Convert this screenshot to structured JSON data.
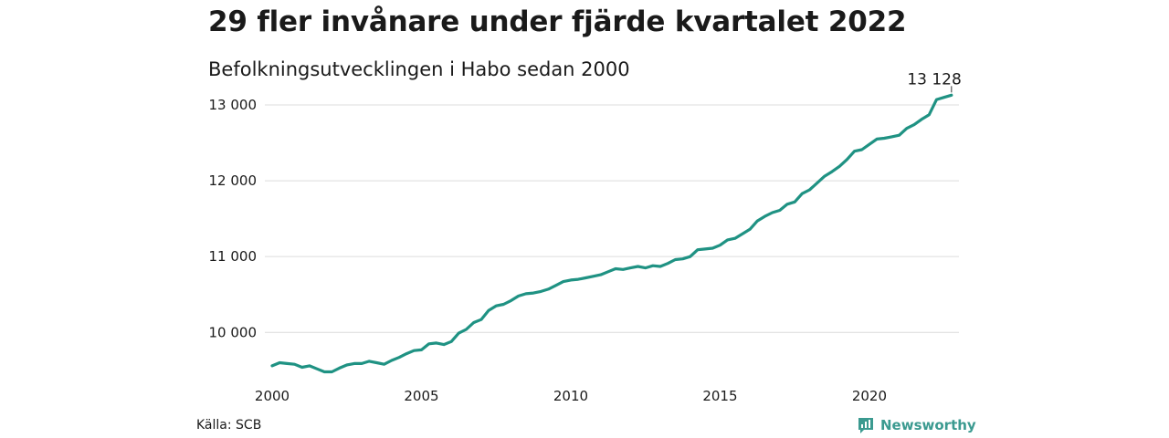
{
  "header": {
    "title": "29 fler invånare under fjärde kvartalet 2022",
    "subtitle": "Befolkningsutvecklingen i Habo sedan 2000"
  },
  "footer": {
    "source": "Källa: SCB",
    "brand": "Newsworthy",
    "brand_icon": "bar-chart-logo-icon"
  },
  "colors": {
    "line": "#1f9283",
    "grid": "#dcdcdc",
    "brand": "#3b9a90"
  },
  "chart_data": {
    "type": "line",
    "title": "29 fler invånare under fjärde kvartalet 2022",
    "subtitle": "Befolkningsutvecklingen i Habo sedan 2000",
    "xlabel": "",
    "ylabel": "",
    "xlim": [
      2000,
      2023
    ],
    "ylim": [
      9450,
      13180
    ],
    "grid": "horizontal",
    "legend": "none",
    "x_ticks": [
      2000,
      2005,
      2010,
      2015,
      2020
    ],
    "x_tick_labels": [
      "2000",
      "2005",
      "2010",
      "2015",
      "2020"
    ],
    "y_ticks": [
      10000,
      11000,
      12000,
      13000
    ],
    "y_tick_labels": [
      "10 000",
      "11 000",
      "12 000",
      "13 000"
    ],
    "end_label": "13 128",
    "series": [
      {
        "x": [
          2000.0,
          2000.25,
          2000.5,
          2000.75,
          2001.0,
          2001.25,
          2001.5,
          2001.75,
          2002.0,
          2002.25,
          2002.5,
          2002.75,
          2003.0,
          2003.25,
          2003.5,
          2003.75,
          2004.0,
          2004.25,
          2004.5,
          2004.75,
          2005.0,
          2005.25,
          2005.5,
          2005.75,
          2006.0,
          2006.25,
          2006.5,
          2006.75,
          2007.0,
          2007.25,
          2007.5,
          2007.75,
          2008.0,
          2008.25,
          2008.5,
          2008.75,
          2009.0,
          2009.25,
          2009.5,
          2009.75,
          2010.0,
          2010.25,
          2010.5,
          2010.75,
          2011.0,
          2011.25,
          2011.5,
          2011.75,
          2012.0,
          2012.25,
          2012.5,
          2012.75,
          2013.0,
          2013.25,
          2013.5,
          2013.75,
          2014.0,
          2014.25,
          2014.5,
          2014.75,
          2015.0,
          2015.25,
          2015.5,
          2015.75,
          2016.0,
          2016.25,
          2016.5,
          2016.75,
          2017.0,
          2017.25,
          2017.5,
          2017.75,
          2018.0,
          2018.25,
          2018.5,
          2018.75,
          2019.0,
          2019.25,
          2019.5,
          2019.75,
          2020.0,
          2020.25,
          2020.5,
          2020.75,
          2021.0,
          2021.25,
          2021.5,
          2021.75,
          2022.0,
          2022.25,
          2022.5,
          2022.75
        ],
        "values": [
          9560,
          9600,
          9590,
          9580,
          9540,
          9560,
          9520,
          9480,
          9480,
          9530,
          9570,
          9590,
          9590,
          9620,
          9600,
          9580,
          9630,
          9670,
          9720,
          9760,
          9770,
          9850,
          9860,
          9840,
          9880,
          9990,
          10040,
          10130,
          10170,
          10290,
          10350,
          10370,
          10420,
          10480,
          10510,
          10520,
          10540,
          10570,
          10620,
          10670,
          10690,
          10700,
          10720,
          10740,
          10760,
          10800,
          10840,
          10830,
          10850,
          10870,
          10850,
          10880,
          10870,
          10910,
          10960,
          10970,
          11000,
          11090,
          11100,
          11110,
          11150,
          11220,
          11240,
          11300,
          11360,
          11470,
          11530,
          11580,
          11610,
          11690,
          11720,
          11830,
          11880,
          11970,
          12060,
          12120,
          12190,
          12280,
          12390,
          12410,
          12480,
          12550,
          12560,
          12580,
          12600,
          12690,
          12740,
          12810,
          12870,
          13070,
          13099,
          13128
        ]
      }
    ]
  }
}
